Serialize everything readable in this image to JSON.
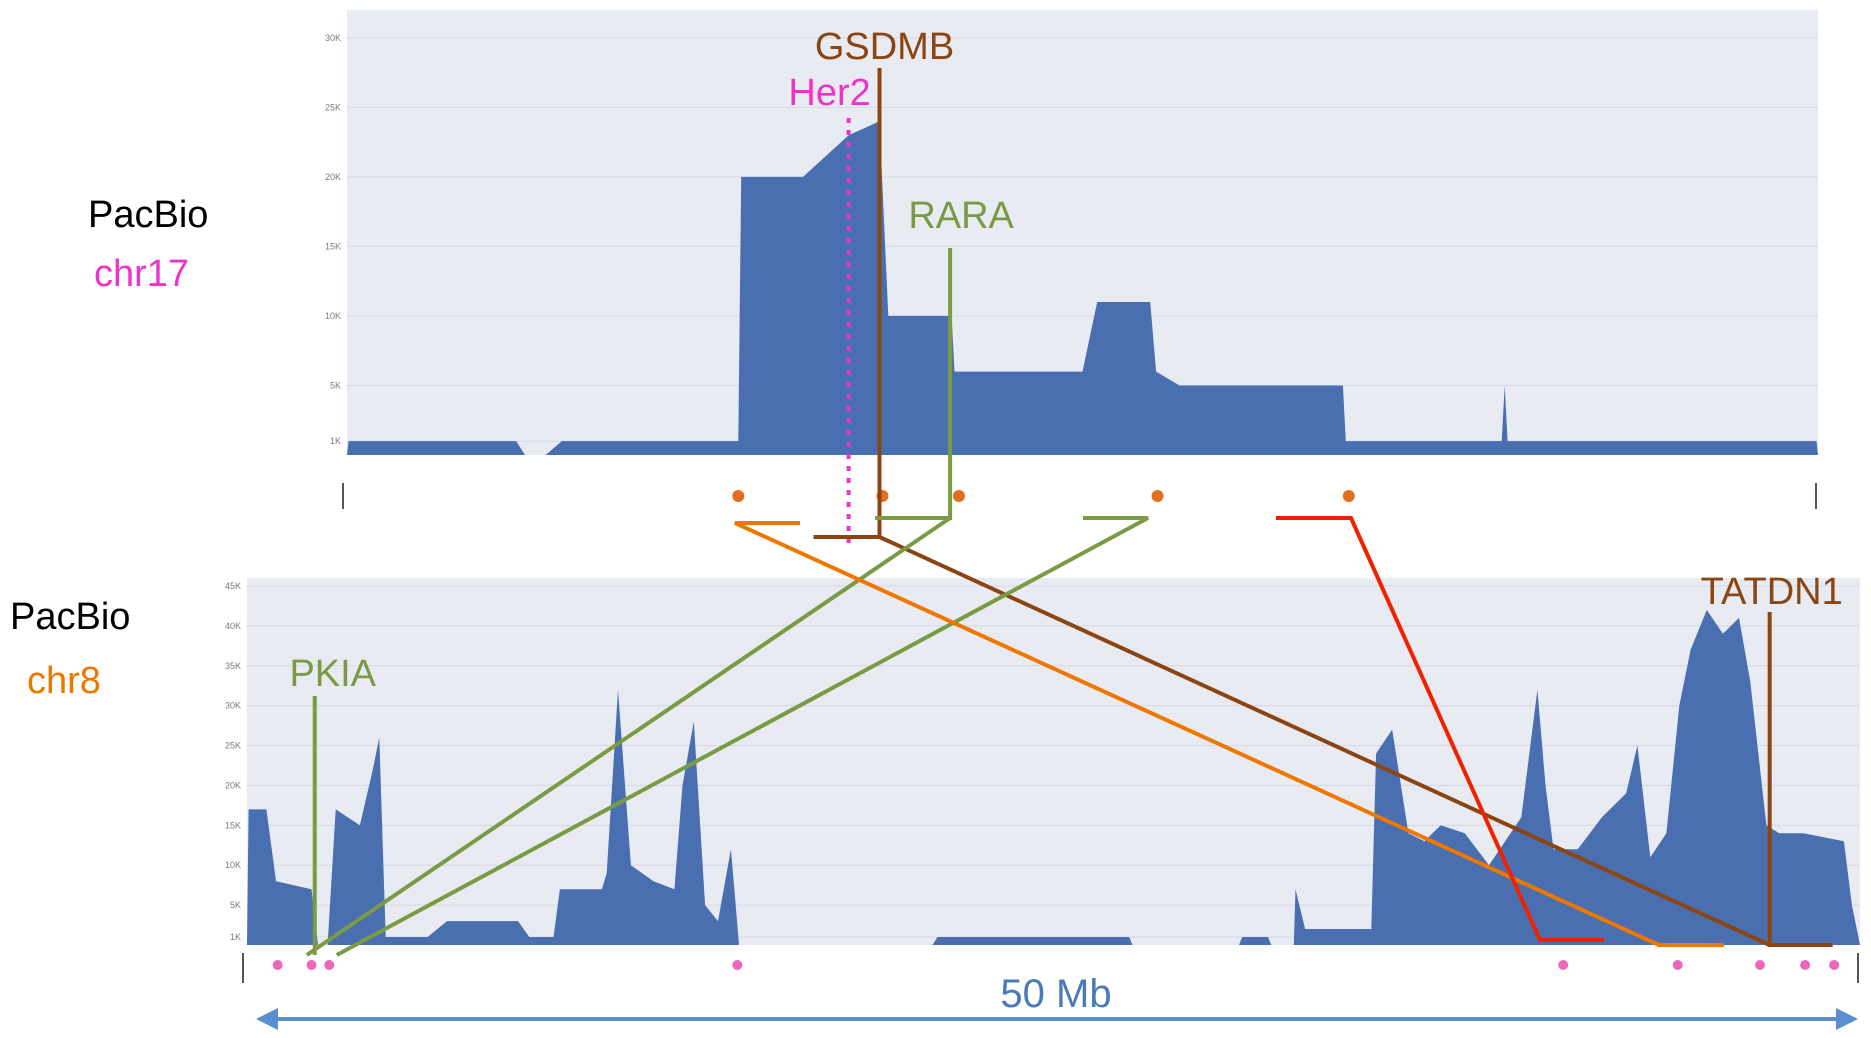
{
  "labels": {
    "track1_source": "PacBio",
    "track1_chrom": "chr17",
    "track2_source": "PacBio",
    "track2_chrom": "chr8",
    "scale": "50 Mb"
  },
  "colors": {
    "coverage_fill": "#4a6fb0",
    "plot_bg": "#e9ebf2",
    "chr17_pink": "#ee33cc",
    "chr8_orange": "#ee7700",
    "gene_brown": "#8b4513",
    "gene_green": "#7a9a44",
    "link_red": "#ee2200",
    "scale_blue": "#5a8ed0",
    "scale_text": "#4a7ab8"
  },
  "chart_data": [
    {
      "type": "area",
      "name": "chr17 coverage",
      "yticks": [
        "1K",
        "5K",
        "10K",
        "15K",
        "20K",
        "25K",
        "30K"
      ],
      "ylim": [
        0,
        32000
      ],
      "xlim": [
        0,
        1
      ],
      "profile": [
        [
          0,
          0
        ],
        [
          0.001,
          1000
        ],
        [
          0.115,
          1000
        ],
        [
          0.121,
          0
        ],
        [
          0.135,
          0
        ],
        [
          0.146,
          1000
        ],
        [
          0.266,
          1000
        ],
        [
          0.268,
          20000
        ],
        [
          0.31,
          20000
        ],
        [
          0.341,
          23000
        ],
        [
          0.362,
          24000
        ],
        [
          0.368,
          10000
        ],
        [
          0.411,
          10000
        ],
        [
          0.413,
          6000
        ],
        [
          0.5,
          6000
        ],
        [
          0.51,
          11000
        ],
        [
          0.546,
          11000
        ],
        [
          0.55,
          6000
        ],
        [
          0.566,
          5000
        ],
        [
          0.648,
          5000
        ],
        [
          0.677,
          5000
        ],
        [
          0.679,
          1000
        ],
        [
          0.785,
          1000
        ],
        [
          0.787,
          5000
        ],
        [
          0.789,
          1000
        ],
        [
          0.999,
          1000
        ],
        [
          1,
          0
        ]
      ],
      "genes": [
        {
          "name": "GSDMB",
          "x": 0.362
        },
        {
          "name": "Her2",
          "x": 0.341
        },
        {
          "name": "RARA",
          "x": 0.41
        }
      ],
      "breakpoints": [
        0.266,
        0.364,
        0.416,
        0.551,
        0.681
      ]
    },
    {
      "type": "area",
      "name": "chr8 coverage",
      "yticks": [
        "1K",
        "5K",
        "10K",
        "15K",
        "20K",
        "25K",
        "30K",
        "35K",
        "40K",
        "45K"
      ],
      "ylim": [
        0,
        46000
      ],
      "xlim": [
        0,
        1
      ],
      "profile": [
        [
          0,
          0
        ],
        [
          0.001,
          17000
        ],
        [
          0.012,
          17000
        ],
        [
          0.018,
          8000
        ],
        [
          0.04,
          7000
        ],
        [
          0.044,
          0
        ],
        [
          0.05,
          0
        ],
        [
          0.055,
          17000
        ],
        [
          0.07,
          15000
        ],
        [
          0.078,
          22000
        ],
        [
          0.082,
          26000
        ],
        [
          0.086,
          1000
        ],
        [
          0.112,
          1000
        ],
        [
          0.124,
          3000
        ],
        [
          0.168,
          3000
        ],
        [
          0.175,
          1000
        ],
        [
          0.19,
          1000
        ],
        [
          0.194,
          7000
        ],
        [
          0.22,
          7000
        ],
        [
          0.223,
          9000
        ],
        [
          0.23,
          32000
        ],
        [
          0.238,
          10000
        ],
        [
          0.252,
          8000
        ],
        [
          0.265,
          7000
        ],
        [
          0.27,
          20000
        ],
        [
          0.277,
          28000
        ],
        [
          0.284,
          5000
        ],
        [
          0.292,
          3000
        ],
        [
          0.3,
          12000
        ],
        [
          0.303,
          5000
        ],
        [
          0.305,
          0
        ],
        [
          0.425,
          0
        ],
        [
          0.428,
          1000
        ],
        [
          0.547,
          1000
        ],
        [
          0.549,
          0
        ],
        [
          0.615,
          0
        ],
        [
          0.617,
          1000
        ],
        [
          0.633,
          1000
        ],
        [
          0.635,
          0
        ],
        [
          0.649,
          0
        ],
        [
          0.65,
          7000
        ],
        [
          0.656,
          2000
        ],
        [
          0.697,
          2000
        ],
        [
          0.7,
          24000
        ],
        [
          0.71,
          27000
        ],
        [
          0.72,
          14000
        ],
        [
          0.73,
          13000
        ],
        [
          0.74,
          15000
        ],
        [
          0.755,
          14000
        ],
        [
          0.77,
          10000
        ],
        [
          0.79,
          16000
        ],
        [
          0.8,
          32000
        ],
        [
          0.805,
          20000
        ],
        [
          0.81,
          12000
        ],
        [
          0.825,
          12000
        ],
        [
          0.84,
          16000
        ],
        [
          0.855,
          19000
        ],
        [
          0.862,
          25000
        ],
        [
          0.87,
          11000
        ],
        [
          0.88,
          14000
        ],
        [
          0.888,
          30000
        ],
        [
          0.895,
          37000
        ],
        [
          0.905,
          42000
        ],
        [
          0.915,
          39000
        ],
        [
          0.925,
          41000
        ],
        [
          0.932,
          33000
        ],
        [
          0.942,
          15000
        ],
        [
          0.95,
          14000
        ],
        [
          0.965,
          14000
        ],
        [
          0.99,
          13000
        ],
        [
          0.995,
          5000
        ],
        [
          1,
          0
        ]
      ],
      "genes": [
        {
          "name": "PKIA",
          "x": 0.042
        },
        {
          "name": "TATDN1",
          "x": 0.944
        }
      ],
      "breakpoints": [
        0.019,
        0.04,
        0.051,
        0.304,
        0.816,
        0.887,
        0.938,
        0.966,
        0.984
      ]
    }
  ]
}
